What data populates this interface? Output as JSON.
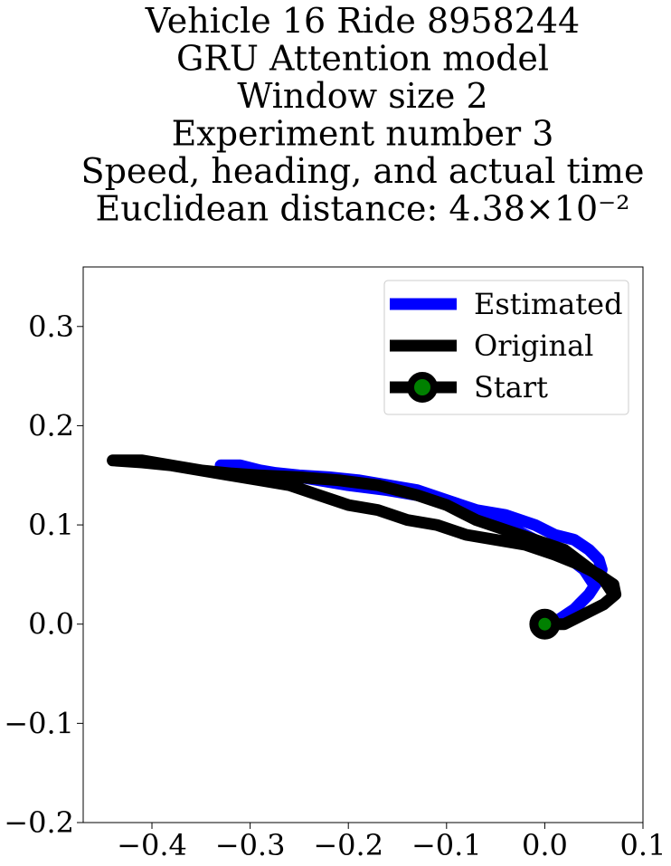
{
  "chart_data": {
    "type": "line",
    "title_lines": [
      "Vehicle 16 Ride 8958244",
      "GRU Attention model",
      "Window size 2",
      "Experiment number 3",
      "Speed, heading, and actual time",
      "Euclidean distance: 4.38×10⁻²"
    ],
    "xlabel": "",
    "ylabel": "",
    "xlim": [
      -0.47,
      0.1
    ],
    "ylim": [
      -0.2,
      0.36
    ],
    "x_ticks": [
      -0.4,
      -0.3,
      -0.2,
      -0.1,
      0.0,
      0.1
    ],
    "x_tick_labels": [
      "−0.4",
      "−0.3",
      "−0.2",
      "−0.1",
      "0.0",
      "0.1"
    ],
    "y_ticks": [
      -0.2,
      -0.1,
      0.0,
      0.1,
      0.2,
      0.3
    ],
    "y_tick_labels": [
      "−0.2",
      "−0.1",
      "0.0",
      "0.1",
      "0.2",
      "0.3"
    ],
    "grid": false,
    "legend_position": "top-right",
    "series": [
      {
        "name": "Estimated",
        "color": "#0000ff",
        "x": [
          0.0,
          0.015,
          0.03,
          0.045,
          0.055,
          0.058,
          0.055,
          0.045,
          0.03,
          0.01,
          -0.01,
          -0.04,
          -0.07,
          -0.1,
          -0.13,
          -0.16,
          -0.2,
          -0.23,
          -0.26,
          -0.29,
          -0.31,
          -0.33,
          -0.31,
          -0.28,
          -0.25,
          -0.22,
          -0.19,
          -0.16,
          -0.13,
          -0.1,
          -0.07,
          -0.04,
          -0.01,
          0.02,
          0.04,
          0.05
        ],
        "y": [
          0.0,
          0.005,
          0.015,
          0.03,
          0.045,
          0.055,
          0.065,
          0.075,
          0.085,
          0.09,
          0.1,
          0.11,
          0.115,
          0.125,
          0.13,
          0.135,
          0.14,
          0.145,
          0.15,
          0.155,
          0.16,
          0.16,
          0.158,
          0.153,
          0.15,
          0.148,
          0.145,
          0.14,
          0.135,
          0.125,
          0.115,
          0.1,
          0.085,
          0.07,
          0.055,
          0.04
        ]
      },
      {
        "name": "Original",
        "color": "#000000",
        "x": [
          0.0,
          0.02,
          0.04,
          0.06,
          0.072,
          0.07,
          0.055,
          0.035,
          0.01,
          -0.02,
          -0.05,
          -0.08,
          -0.11,
          -0.14,
          -0.17,
          -0.2,
          -0.23,
          -0.26,
          -0.29,
          -0.32,
          -0.35,
          -0.38,
          -0.41,
          -0.44,
          -0.41,
          -0.38,
          -0.35,
          -0.32,
          -0.29,
          -0.25,
          -0.21,
          -0.17,
          -0.13,
          -0.1,
          -0.07,
          -0.04,
          -0.01,
          0.02,
          0.04,
          0.06,
          0.07
        ],
        "y": [
          0.0,
          0.0,
          0.01,
          0.02,
          0.03,
          0.04,
          0.05,
          0.06,
          0.07,
          0.08,
          0.085,
          0.09,
          0.1,
          0.105,
          0.115,
          0.12,
          0.13,
          0.14,
          0.145,
          0.15,
          0.155,
          0.16,
          0.163,
          0.165,
          0.165,
          0.16,
          0.155,
          0.152,
          0.15,
          0.148,
          0.145,
          0.14,
          0.13,
          0.12,
          0.105,
          0.095,
          0.085,
          0.075,
          0.06,
          0.045,
          0.03
        ]
      }
    ],
    "start_point": {
      "name": "Start",
      "x": 0.0,
      "y": 0.0,
      "edge_color": "#000000",
      "face_color": "#008000"
    }
  }
}
